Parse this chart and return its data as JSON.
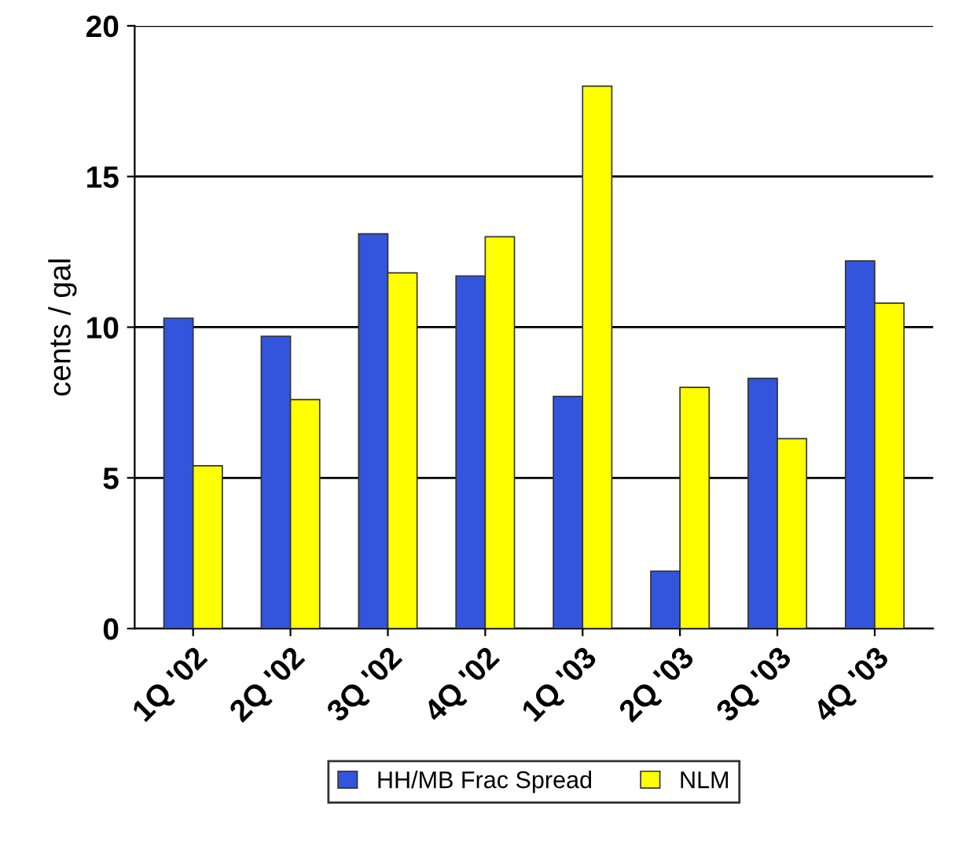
{
  "chart_data": {
    "type": "bar",
    "ylabel": "cents / gal",
    "categories": [
      "1Q '02",
      "2Q '02",
      "3Q '02",
      "4Q '02",
      "1Q '03",
      "2Q '03",
      "3Q '03",
      "4Q '03"
    ],
    "series": [
      {
        "name": "HH/MB Frac Spread",
        "color": "#3355dd",
        "values": [
          10.3,
          9.7,
          13.1,
          11.7,
          7.7,
          1.9,
          8.3,
          12.2
        ]
      },
      {
        "name": "NLM",
        "color": "#ffff00",
        "values": [
          5.4,
          7.6,
          11.8,
          13.0,
          18.0,
          8.0,
          6.3,
          10.8
        ]
      }
    ],
    "ylim": [
      0,
      20
    ],
    "yticks": [
      0,
      5,
      10,
      15,
      20
    ],
    "grid": "y",
    "legend": "bottom"
  }
}
